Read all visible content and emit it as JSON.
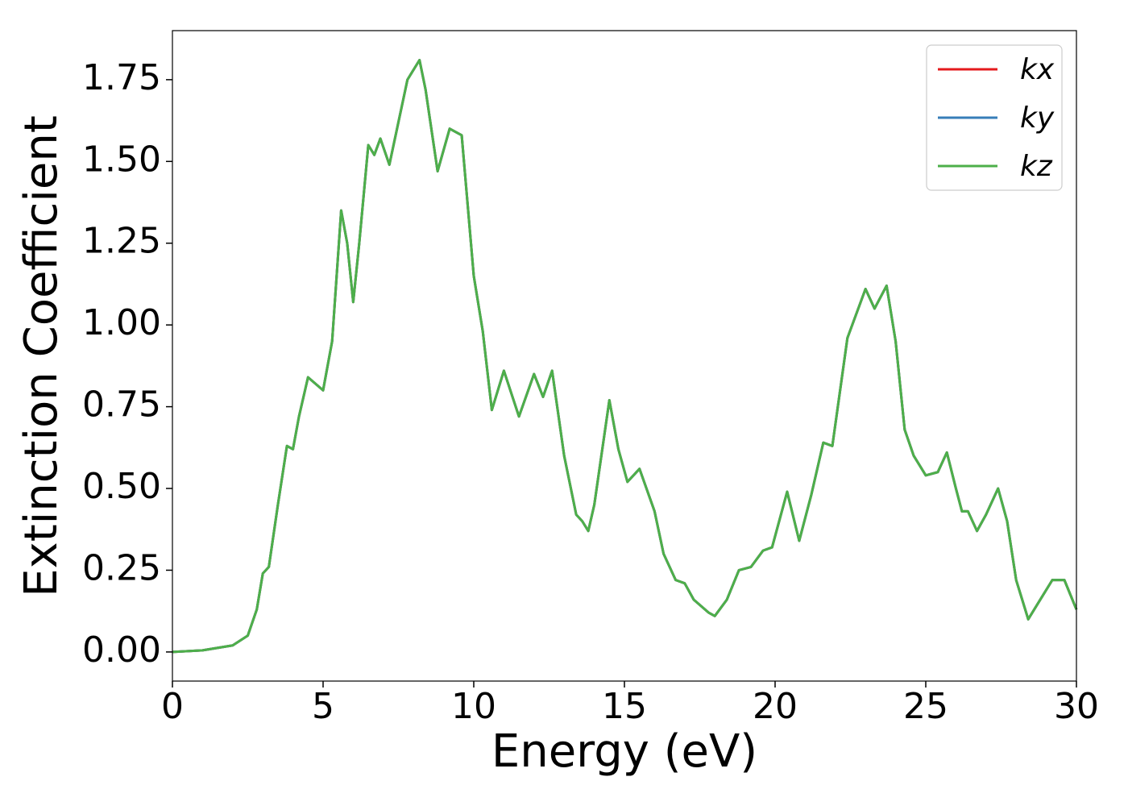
{
  "chart_data": {
    "type": "line",
    "xlabel": "Energy (eV)",
    "ylabel": "Extinction Coefficient",
    "x": [
      0,
      1,
      2,
      2.5,
      2.8,
      3.0,
      3.2,
      3.5,
      3.8,
      4.0,
      4.2,
      4.5,
      5.0,
      5.3,
      5.6,
      5.8,
      6.0,
      6.2,
      6.5,
      6.7,
      6.9,
      7.2,
      7.5,
      7.8,
      8.2,
      8.4,
      8.8,
      9.2,
      9.6,
      10.0,
      10.3,
      10.6,
      11.0,
      11.5,
      12.0,
      12.3,
      12.6,
      13.0,
      13.4,
      13.6,
      13.8,
      14.0,
      14.5,
      14.8,
      15.1,
      15.5,
      16.0,
      16.3,
      16.7,
      17.0,
      17.3,
      17.8,
      18.0,
      18.4,
      18.8,
      19.2,
      19.6,
      19.9,
      20.4,
      20.8,
      21.2,
      21.6,
      21.9,
      22.4,
      23.0,
      23.3,
      23.7,
      24.0,
      24.3,
      24.6,
      25.0,
      25.4,
      25.7,
      26.0,
      26.2,
      26.4,
      26.7,
      27.0,
      27.4,
      27.7,
      28.0,
      28.4,
      28.8,
      29.2,
      29.6,
      30.0
    ],
    "series": [
      {
        "name": "kx",
        "color": "#e41a1c",
        "values": [
          0,
          0.005,
          0.02,
          0.05,
          0.13,
          0.24,
          0.26,
          0.45,
          0.63,
          0.62,
          0.72,
          0.84,
          0.8,
          0.95,
          1.35,
          1.25,
          1.07,
          1.25,
          1.55,
          1.52,
          1.57,
          1.49,
          1.62,
          1.75,
          1.81,
          1.72,
          1.47,
          1.6,
          1.58,
          1.15,
          0.98,
          0.74,
          0.86,
          0.72,
          0.85,
          0.78,
          0.86,
          0.6,
          0.42,
          0.4,
          0.37,
          0.45,
          0.77,
          0.62,
          0.52,
          0.56,
          0.43,
          0.3,
          0.22,
          0.21,
          0.16,
          0.12,
          0.11,
          0.16,
          0.25,
          0.26,
          0.31,
          0.32,
          0.49,
          0.34,
          0.48,
          0.64,
          0.63,
          0.96,
          1.11,
          1.05,
          1.12,
          0.95,
          0.68,
          0.6,
          0.54,
          0.55,
          0.61,
          0.5,
          0.43,
          0.43,
          0.37,
          0.42,
          0.5,
          0.4,
          0.22,
          0.1,
          0.16,
          0.22,
          0.22,
          0.13
        ]
      },
      {
        "name": "ky",
        "color": "#377eb8",
        "values": [
          0,
          0.005,
          0.02,
          0.05,
          0.13,
          0.24,
          0.26,
          0.45,
          0.63,
          0.62,
          0.72,
          0.84,
          0.8,
          0.95,
          1.35,
          1.25,
          1.07,
          1.25,
          1.55,
          1.52,
          1.57,
          1.49,
          1.62,
          1.75,
          1.81,
          1.72,
          1.47,
          1.6,
          1.58,
          1.15,
          0.98,
          0.74,
          0.86,
          0.72,
          0.85,
          0.78,
          0.86,
          0.6,
          0.42,
          0.4,
          0.37,
          0.45,
          0.77,
          0.62,
          0.52,
          0.56,
          0.43,
          0.3,
          0.22,
          0.21,
          0.16,
          0.12,
          0.11,
          0.16,
          0.25,
          0.26,
          0.31,
          0.32,
          0.49,
          0.34,
          0.48,
          0.64,
          0.63,
          0.96,
          1.11,
          1.05,
          1.12,
          0.95,
          0.68,
          0.6,
          0.54,
          0.55,
          0.61,
          0.5,
          0.43,
          0.43,
          0.37,
          0.42,
          0.5,
          0.4,
          0.22,
          0.1,
          0.16,
          0.22,
          0.22,
          0.13
        ]
      },
      {
        "name": "kz",
        "color": "#4daf4a",
        "values": [
          0,
          0.005,
          0.02,
          0.05,
          0.13,
          0.24,
          0.26,
          0.45,
          0.63,
          0.62,
          0.72,
          0.84,
          0.8,
          0.95,
          1.35,
          1.25,
          1.07,
          1.25,
          1.55,
          1.52,
          1.57,
          1.49,
          1.62,
          1.75,
          1.81,
          1.72,
          1.47,
          1.6,
          1.58,
          1.15,
          0.98,
          0.74,
          0.86,
          0.72,
          0.85,
          0.78,
          0.86,
          0.6,
          0.42,
          0.4,
          0.37,
          0.45,
          0.77,
          0.62,
          0.52,
          0.56,
          0.43,
          0.3,
          0.22,
          0.21,
          0.16,
          0.12,
          0.11,
          0.16,
          0.25,
          0.26,
          0.31,
          0.32,
          0.49,
          0.34,
          0.48,
          0.64,
          0.63,
          0.96,
          1.11,
          1.05,
          1.12,
          0.95,
          0.68,
          0.6,
          0.54,
          0.55,
          0.61,
          0.5,
          0.43,
          0.43,
          0.37,
          0.42,
          0.5,
          0.4,
          0.22,
          0.1,
          0.16,
          0.22,
          0.22,
          0.13
        ]
      }
    ],
    "xlim": [
      0,
      30
    ],
    "xticks": [
      0,
      5,
      10,
      15,
      20,
      25,
      30
    ],
    "ylim": [
      -0.089,
      1.9
    ],
    "yticks": [
      {
        "value": 0,
        "label": "0.00"
      },
      {
        "value": 0.25,
        "label": "0.25"
      },
      {
        "value": 0.5,
        "label": "0.50"
      },
      {
        "value": 0.75,
        "label": "0.75"
      },
      {
        "value": 1,
        "label": "1.00"
      },
      {
        "value": 1.25,
        "label": "1.25"
      },
      {
        "value": 1.5,
        "label": "1.50"
      },
      {
        "value": 1.75,
        "label": "1.75"
      }
    ],
    "grid": false,
    "legend": "upper right"
  }
}
